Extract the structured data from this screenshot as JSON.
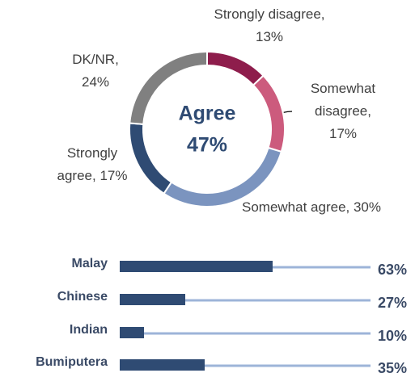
{
  "chart_data": [
    {
      "type": "donut",
      "categories": [
        "Strongly disagree, 13%",
        "Somewhat disagree, 17%",
        "Somewhat agree, 30%",
        "Strongly agree, 17%",
        "DK/NR, 24%"
      ],
      "values": [
        13,
        17,
        30,
        17,
        24
      ],
      "colors": [
        "#8e1d4c",
        "#cc5b7d",
        "#7b94bf",
        "#2f4b73",
        "#808080"
      ],
      "annotations": [
        "Agree",
        "47%"
      ]
    },
    {
      "type": "bar",
      "orientation": "horizontal",
      "categories": [
        "Malay",
        "Chinese",
        "Indian",
        "Bumiputera"
      ],
      "values": [
        63,
        27,
        10,
        35
      ],
      "value_labels": [
        "63%",
        "27%",
        "10%",
        "35%"
      ],
      "color": "#2f4b73",
      "track_color": "#9db4d8",
      "xlim": [
        0,
        100
      ]
    }
  ]
}
